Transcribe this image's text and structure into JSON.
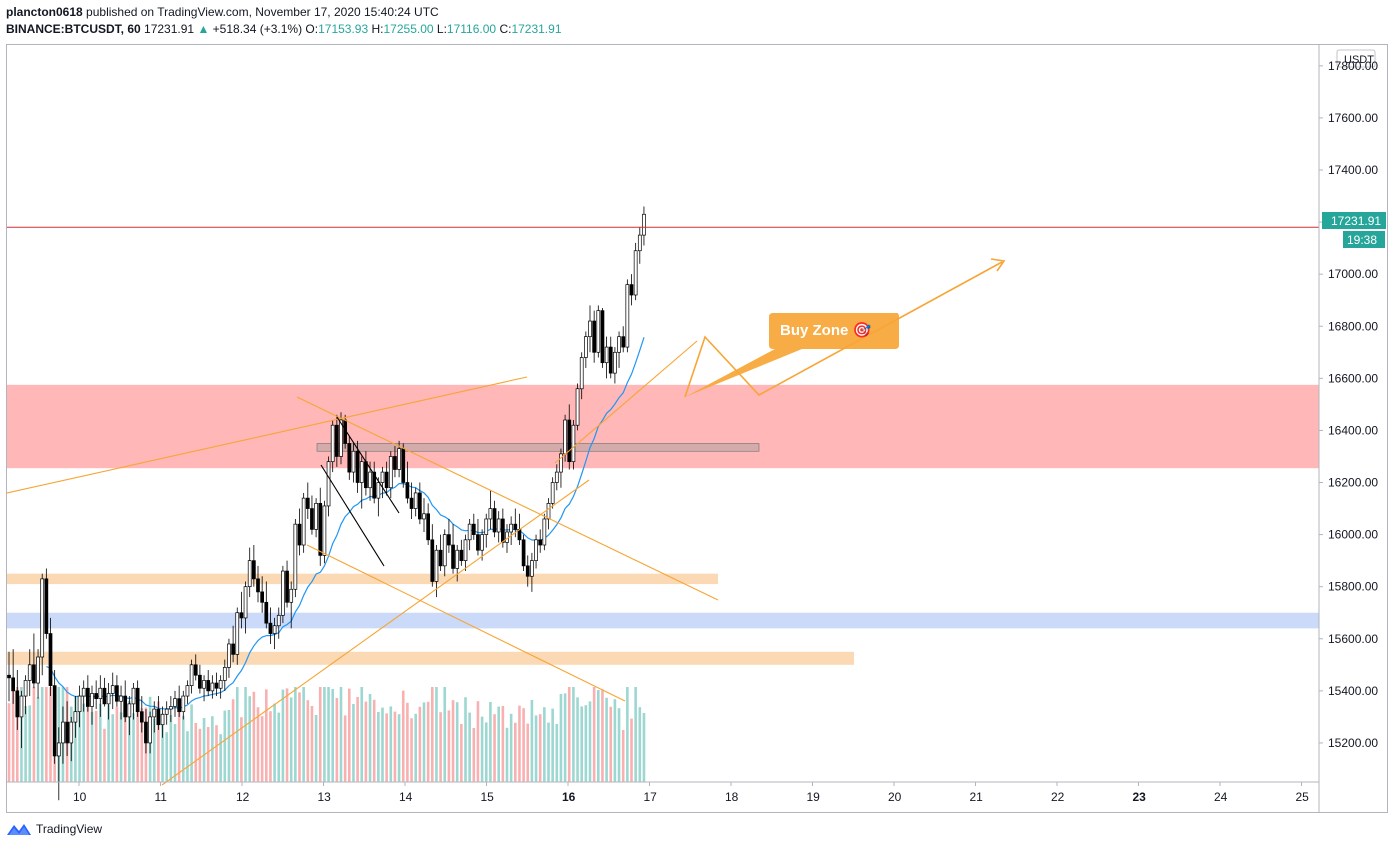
{
  "header": {
    "author": "plancton0618",
    "published_text": "published on TradingView.com, November 17, 2020 15:40:24 UTC",
    "symbol": "BINANCE:BTCUSDT, 60",
    "last": "17231.91",
    "change_arrow": "▲",
    "change": "+518.34 (+3.1%)",
    "o_label": "O:",
    "o": "17153.93",
    "h_label": "H:",
    "h": "17255.00",
    "l_label": "L:",
    "l": "17116.00",
    "c_label": "C:",
    "c": "17231.91"
  },
  "footer": {
    "brand": "TradingView"
  },
  "colors": {
    "up": "#26a69a",
    "down": "#ef5350",
    "resistance_zone": "#ff9999",
    "support_zone": "#f9c58c",
    "blue_zone": "#aec6f5",
    "trendline": "#f7a535",
    "ema": "#2196f3",
    "price_line": "#d32f2f"
  },
  "chart_data": {
    "type": "candlestick",
    "currency_label": "USDT",
    "y_ticks": [
      "15200.00",
      "15400.00",
      "15600.00",
      "15800.00",
      "16000.00",
      "16200.00",
      "16400.00",
      "16600.00",
      "16800.00",
      "17000.00",
      "17200.00",
      "17400.00",
      "17600.00",
      "17800.00"
    ],
    "x_ticks": [
      "10",
      "11",
      "12",
      "13",
      "14",
      "15",
      "16",
      "17",
      "18",
      "19",
      "20",
      "21",
      "22",
      "23",
      "24",
      "25"
    ],
    "ylim": [
      15050,
      17880
    ],
    "last_price_label": "17231.91",
    "countdown_label": "19:38",
    "zones": [
      {
        "name": "resistance",
        "from": 16255,
        "to": 16575
      },
      {
        "name": "support-upper",
        "from": 15810,
        "to": 15850
      },
      {
        "name": "support-blue",
        "from": 15640,
        "to": 15700
      },
      {
        "name": "support-lower",
        "from": 15500,
        "to": 15550
      }
    ],
    "annotation": "Buy Zone 🎯",
    "candles": [
      [
        15460,
        15550,
        15360,
        15450
      ],
      [
        15450,
        15560,
        15350,
        15400
      ],
      [
        15400,
        15480,
        15250,
        15300
      ],
      [
        15300,
        15400,
        15180,
        15380
      ],
      [
        15380,
        15460,
        15310,
        15440
      ],
      [
        15440,
        15560,
        15380,
        15500
      ],
      [
        15500,
        15620,
        15410,
        15430
      ],
      [
        15430,
        15560,
        15370,
        15530
      ],
      [
        15530,
        15850,
        15460,
        15830
      ],
      [
        15830,
        15870,
        15600,
        15620
      ],
      [
        15620,
        15680,
        15380,
        15420
      ],
      [
        15420,
        15480,
        15120,
        15150
      ],
      [
        15150,
        15260,
        14980,
        15200
      ],
      [
        15200,
        15340,
        15120,
        15280
      ],
      [
        15280,
        15360,
        15150,
        15200
      ],
      [
        15200,
        15300,
        15130,
        15280
      ],
      [
        15280,
        15380,
        15220,
        15320
      ],
      [
        15320,
        15420,
        15260,
        15380
      ],
      [
        15380,
        15440,
        15320,
        15410
      ],
      [
        15410,
        15460,
        15320,
        15340
      ],
      [
        15340,
        15420,
        15270,
        15390
      ],
      [
        15390,
        15440,
        15330,
        15370
      ],
      [
        15370,
        15460,
        15300,
        15410
      ],
      [
        15410,
        15450,
        15340,
        15350
      ],
      [
        15350,
        15430,
        15290,
        15390
      ],
      [
        15390,
        15470,
        15330,
        15420
      ],
      [
        15420,
        15460,
        15340,
        15360
      ],
      [
        15360,
        15420,
        15290,
        15380
      ],
      [
        15380,
        15440,
        15280,
        15300
      ],
      [
        15300,
        15380,
        15230,
        15350
      ],
      [
        15350,
        15430,
        15290,
        15410
      ],
      [
        15410,
        15440,
        15300,
        15320
      ],
      [
        15320,
        15380,
        15240,
        15280
      ],
      [
        15280,
        15330,
        15160,
        15200
      ],
      [
        15200,
        15320,
        15160,
        15300
      ],
      [
        15300,
        15360,
        15240,
        15330
      ],
      [
        15330,
        15380,
        15250,
        15270
      ],
      [
        15270,
        15340,
        15220,
        15310
      ],
      [
        15310,
        15360,
        15270,
        15330
      ],
      [
        15330,
        15380,
        15280,
        15340
      ],
      [
        15340,
        15400,
        15300,
        15370
      ],
      [
        15370,
        15420,
        15300,
        15320
      ],
      [
        15320,
        15400,
        15290,
        15380
      ],
      [
        15380,
        15440,
        15350,
        15420
      ],
      [
        15420,
        15520,
        15390,
        15500
      ],
      [
        15500,
        15540,
        15440,
        15460
      ],
      [
        15460,
        15500,
        15390,
        15410
      ],
      [
        15410,
        15460,
        15360,
        15440
      ],
      [
        15440,
        15480,
        15380,
        15400
      ],
      [
        15400,
        15460,
        15370,
        15430
      ],
      [
        15430,
        15470,
        15380,
        15410
      ],
      [
        15410,
        15460,
        15370,
        15440
      ],
      [
        15440,
        15520,
        15400,
        15490
      ],
      [
        15490,
        15600,
        15450,
        15580
      ],
      [
        15580,
        15650,
        15510,
        15540
      ],
      [
        15540,
        15720,
        15500,
        15700
      ],
      [
        15700,
        15780,
        15640,
        15680
      ],
      [
        15680,
        15820,
        15620,
        15800
      ],
      [
        15800,
        15950,
        15760,
        15900
      ],
      [
        15900,
        15960,
        15800,
        15830
      ],
      [
        15830,
        15880,
        15740,
        15780
      ],
      [
        15780,
        15840,
        15700,
        15740
      ],
      [
        15740,
        15820,
        15640,
        15660
      ],
      [
        15660,
        15720,
        15580,
        15620
      ],
      [
        15620,
        15680,
        15560,
        15650
      ],
      [
        15650,
        15720,
        15600,
        15690
      ],
      [
        15690,
        15880,
        15660,
        15860
      ],
      [
        15860,
        15900,
        15720,
        15740
      ],
      [
        15740,
        15820,
        15640,
        15790
      ],
      [
        15790,
        16060,
        15760,
        16040
      ],
      [
        16040,
        16100,
        15920,
        15960
      ],
      [
        15960,
        16160,
        15930,
        16140
      ],
      [
        16140,
        16200,
        16060,
        16100
      ],
      [
        16100,
        16150,
        16000,
        16020
      ],
      [
        16020,
        16140,
        15990,
        16120
      ],
      [
        16120,
        16180,
        15880,
        15920
      ],
      [
        15920,
        16130,
        15890,
        16110
      ],
      [
        16110,
        16300,
        16070,
        16280
      ],
      [
        16280,
        16440,
        16240,
        16420
      ],
      [
        16420,
        16460,
        16260,
        16300
      ],
      [
        16300,
        16470,
        16270,
        16440
      ],
      [
        16440,
        16460,
        16330,
        16350
      ],
      [
        16350,
        16380,
        16210,
        16240
      ],
      [
        16240,
        16350,
        16200,
        16320
      ],
      [
        16320,
        16360,
        16160,
        16200
      ],
      [
        16200,
        16300,
        16100,
        16280
      ],
      [
        16280,
        16320,
        16150,
        16180
      ],
      [
        16180,
        16280,
        16130,
        16240
      ],
      [
        16240,
        16280,
        16120,
        16140
      ],
      [
        16140,
        16220,
        16070,
        16200
      ],
      [
        16200,
        16260,
        16140,
        16240
      ],
      [
        16240,
        16280,
        16150,
        16180
      ],
      [
        16180,
        16320,
        16140,
        16300
      ],
      [
        16300,
        16340,
        16220,
        16250
      ],
      [
        16250,
        16360,
        16220,
        16330
      ],
      [
        16330,
        16350,
        16180,
        16200
      ],
      [
        16200,
        16280,
        16120,
        16140
      ],
      [
        16140,
        16200,
        16060,
        16100
      ],
      [
        16100,
        16180,
        16070,
        16160
      ],
      [
        16160,
        16200,
        16040,
        16060
      ],
      [
        16060,
        16140,
        16010,
        16080
      ],
      [
        16080,
        16120,
        15960,
        15980
      ],
      [
        15980,
        16040,
        15800,
        15820
      ],
      [
        15820,
        15960,
        15760,
        15940
      ],
      [
        15940,
        16000,
        15860,
        15880
      ],
      [
        15880,
        16020,
        15840,
        16000
      ],
      [
        16000,
        16060,
        15930,
        15960
      ],
      [
        15960,
        16040,
        15850,
        15870
      ],
      [
        15870,
        15960,
        15820,
        15940
      ],
      [
        15940,
        15980,
        15880,
        15900
      ],
      [
        15900,
        16000,
        15860,
        15980
      ],
      [
        15980,
        16060,
        15940,
        16040
      ],
      [
        16040,
        16080,
        15980,
        16000
      ],
      [
        16000,
        16060,
        15920,
        15940
      ],
      [
        15940,
        16020,
        15900,
        16000
      ],
      [
        16000,
        16080,
        15950,
        16060
      ],
      [
        16060,
        16170,
        16020,
        16100
      ],
      [
        16100,
        16130,
        15990,
        16010
      ],
      [
        16010,
        16090,
        15970,
        16060
      ],
      [
        16060,
        16100,
        15950,
        15970
      ],
      [
        15970,
        16040,
        15930,
        16010
      ],
      [
        16010,
        16070,
        15960,
        16040
      ],
      [
        16040,
        16100,
        15990,
        16020
      ],
      [
        16020,
        16080,
        15960,
        15980
      ],
      [
        15980,
        16000,
        15860,
        15880
      ],
      [
        15880,
        15920,
        15800,
        15840
      ],
      [
        15840,
        15930,
        15780,
        15900
      ],
      [
        15900,
        16000,
        15870,
        15980
      ],
      [
        15980,
        16020,
        15930,
        15960
      ],
      [
        15960,
        16080,
        15940,
        16060
      ],
      [
        16060,
        16140,
        16020,
        16120
      ],
      [
        16120,
        16220,
        16100,
        16200
      ],
      [
        16200,
        16270,
        16170,
        16240
      ],
      [
        16240,
        16330,
        16180,
        16310
      ],
      [
        16310,
        16460,
        16280,
        16440
      ],
      [
        16440,
        16500,
        16250,
        16280
      ],
      [
        16280,
        16440,
        16250,
        16420
      ],
      [
        16420,
        16580,
        16400,
        16560
      ],
      [
        16560,
        16700,
        16520,
        16680
      ],
      [
        16680,
        16780,
        16640,
        16760
      ],
      [
        16760,
        16880,
        16700,
        16820
      ],
      [
        16820,
        16860,
        16660,
        16700
      ],
      [
        16700,
        16880,
        16680,
        16860
      ],
      [
        16860,
        16870,
        16640,
        16660
      ],
      [
        16660,
        16760,
        16600,
        16720
      ],
      [
        16720,
        16760,
        16600,
        16620
      ],
      [
        16620,
        16720,
        16580,
        16700
      ],
      [
        16700,
        16780,
        16640,
        16760
      ],
      [
        16760,
        16800,
        16700,
        16720
      ],
      [
        16720,
        16980,
        16700,
        16960
      ],
      [
        16960,
        17000,
        16880,
        16920
      ],
      [
        16920,
        17120,
        16900,
        17090
      ],
      [
        17090,
        17180,
        17040,
        17150
      ],
      [
        17150,
        17260,
        17110,
        17230
      ]
    ]
  }
}
